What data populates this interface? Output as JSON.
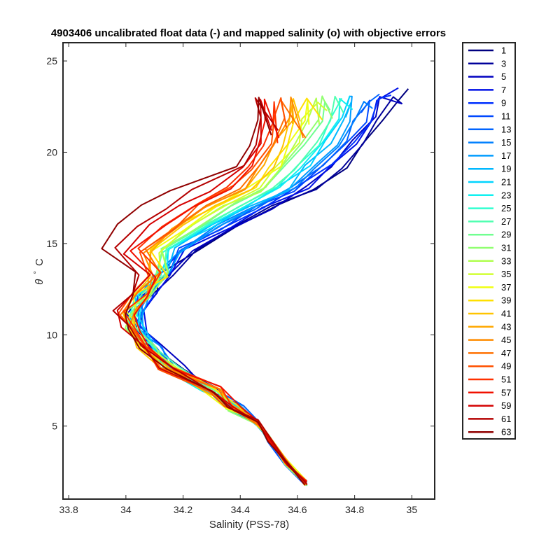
{
  "chart_data": {
    "type": "line",
    "title": "4903406 uncalibrated float data (-) and mapped salinity (o) with objective errors",
    "xlabel": "Salinity (PSS-78)",
    "ylabel_symbol": "θ",
    "ylabel_degree": "°",
    "ylabel_unit": "C",
    "xlim": [
      33.78,
      35.08
    ],
    "ylim": [
      1.0,
      26.0
    ],
    "xticks": [
      33.8,
      34,
      34.2,
      34.4,
      34.6,
      34.8,
      35
    ],
    "xtick_labels": [
      "33.8",
      "34",
      "34.2",
      "34.4",
      "34.6",
      "34.8",
      "35"
    ],
    "yticks": [
      5,
      10,
      15,
      20,
      25
    ],
    "ytick_labels": [
      "5",
      "10",
      "15",
      "20",
      "25"
    ],
    "grid": false,
    "legend_position": "outside-right",
    "colormap": "jet",
    "series": [
      {
        "name": "1",
        "color": "#000080"
      },
      {
        "name": "3",
        "color": "#00009b"
      },
      {
        "name": "5",
        "color": "#0000c0"
      },
      {
        "name": "7",
        "color": "#0010e6"
      },
      {
        "name": "9",
        "color": "#0030ff"
      },
      {
        "name": "11",
        "color": "#0048ff"
      },
      {
        "name": "13",
        "color": "#0064ff"
      },
      {
        "name": "15",
        "color": "#0080ff"
      },
      {
        "name": "17",
        "color": "#009cff"
      },
      {
        "name": "19",
        "color": "#00b8ff"
      },
      {
        "name": "21",
        "color": "#00d4ff"
      },
      {
        "name": "23",
        "color": "#10f0f0"
      },
      {
        "name": "25",
        "color": "#30ffd0"
      },
      {
        "name": "27",
        "color": "#50ffb0"
      },
      {
        "name": "29",
        "color": "#70ff90"
      },
      {
        "name": "31",
        "color": "#90ff70"
      },
      {
        "name": "33",
        "color": "#b0ff50"
      },
      {
        "name": "35",
        "color": "#d0ff30"
      },
      {
        "name": "37",
        "color": "#f0ff10"
      },
      {
        "name": "39",
        "color": "#ffe000"
      },
      {
        "name": "41",
        "color": "#ffc400"
      },
      {
        "name": "43",
        "color": "#ffa800"
      },
      {
        "name": "45",
        "color": "#ff8c00"
      },
      {
        "name": "47",
        "color": "#ff7000"
      },
      {
        "name": "49",
        "color": "#ff5000"
      },
      {
        "name": "51",
        "color": "#ff3000"
      },
      {
        "name": "57",
        "color": "#f01000"
      },
      {
        "name": "59",
        "color": "#d40000"
      },
      {
        "name": "61",
        "color": "#b40000"
      },
      {
        "name": "63",
        "color": "#900000"
      }
    ]
  }
}
